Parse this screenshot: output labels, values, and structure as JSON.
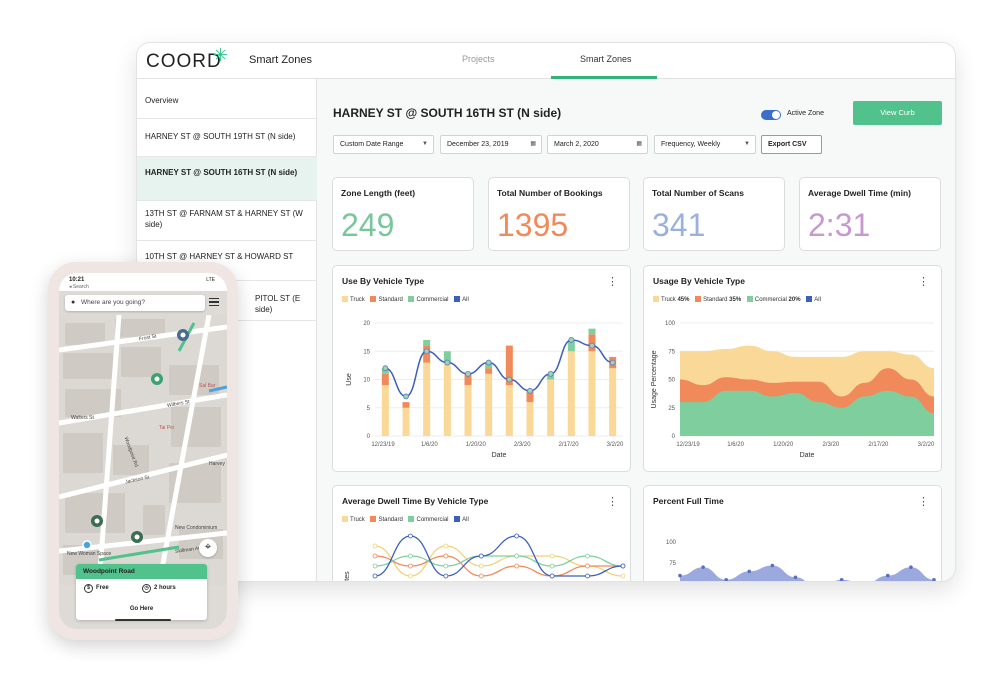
{
  "app": {
    "logo": "COORD",
    "title": "Smart Zones",
    "tabs": [
      {
        "label": "Projects"
      },
      {
        "label": "Smart Zones"
      }
    ],
    "accent": "#33b27e"
  },
  "sidebar": {
    "overview": "Overview",
    "items": [
      {
        "label": "HARNEY ST @ SOUTH 19TH ST (N side)"
      },
      {
        "label": "HARNEY ST @ SOUTH 16TH ST (N side)"
      },
      {
        "label": "13TH ST @ FARNAM ST & HARNEY ST (W side)"
      },
      {
        "label": "10TH ST @ HARNEY ST & HOWARD ST"
      },
      {
        "label": "PITOL ST (E side)"
      }
    ]
  },
  "main": {
    "zone_title": "HARNEY ST @ SOUTH 16TH ST (N side)",
    "active_zone_label": "Active Zone",
    "view_curb": "View Curb",
    "date_range": "Custom Date Range",
    "start_date": "December 23, 2019",
    "end_date": "March 2, 2020",
    "frequency": "Frequency,  Weekly",
    "export": "Export CSV"
  },
  "stats": [
    {
      "label": "Zone Length (feet)",
      "value": "249",
      "color": "#78c79a"
    },
    {
      "label": "Total Number of Bookings",
      "value": "1395",
      "color": "#f08a5a"
    },
    {
      "label": "Total Number of Scans",
      "value": "341",
      "color": "#9bb1dd"
    },
    {
      "label": "Average Dwell Time (min)",
      "value": "2:31",
      "color": "#c69ad0"
    }
  ],
  "panels": {
    "use_title": "Use By Vehicle Type",
    "usage_title": "Usage By Vehicle Type",
    "dwell_title": "Average Dwell Time By Vehicle Type",
    "full_title": "Percent Full Time",
    "legend": {
      "truck": "Truck",
      "standard": "Standard",
      "commercial": "Commercial",
      "all": "All"
    },
    "usage_legend": {
      "truck_pct": "45%",
      "standard_pct": "35%",
      "commercial_pct": "20%"
    },
    "xlabel": "Date",
    "use_ylabel": "Use",
    "usage_ylabel": "Usage Percentage",
    "dwell_ylabel": "utes"
  },
  "chart_data": [
    {
      "type": "bar",
      "title": "Use By Vehicle Type",
      "xlabel": "Date",
      "ylabel": "Use",
      "ylim": [
        0,
        20
      ],
      "yticks": [
        0,
        5,
        10,
        15,
        20
      ],
      "xtick_labels": [
        "12/23/19",
        "1/6/20",
        "1/20/20",
        "2/3/20",
        "2/17/20",
        "3/2/20"
      ],
      "series": [
        {
          "name": "Truck",
          "color": "#f9d898",
          "values": [
            9,
            5,
            13,
            13,
            9,
            11,
            9,
            6,
            10,
            15,
            15,
            12
          ]
        },
        {
          "name": "Standard",
          "color": "#f08a5a",
          "values": [
            2,
            1,
            3,
            0,
            2,
            1,
            7,
            2,
            0,
            0,
            3,
            2
          ]
        },
        {
          "name": "Commercial",
          "color": "#7fcf9e",
          "values": [
            1,
            0,
            1,
            2,
            0,
            1,
            0,
            0,
            1,
            2,
            1,
            0
          ]
        },
        {
          "name": "All",
          "color": "#3a5fbd",
          "type": "line",
          "values": [
            12,
            7,
            15,
            13,
            11,
            13,
            10,
            8,
            11,
            17,
            16,
            13
          ]
        }
      ]
    },
    {
      "type": "area",
      "title": "Usage By Vehicle Type",
      "xlabel": "Date",
      "ylabel": "Usage Percentage",
      "ylim": [
        0,
        100
      ],
      "yticks": [
        0,
        25,
        50,
        75,
        100
      ],
      "xtick_labels": [
        "12/23/19",
        "1/6/20",
        "1/20/20",
        "2/3/20",
        "2/17/20",
        "3/2/20"
      ],
      "series": [
        {
          "name": "Commercial",
          "color": "#7fcf9e",
          "values": [
            30,
            30,
            40,
            40,
            35,
            38,
            30,
            25,
            35,
            40,
            35,
            20
          ]
        },
        {
          "name": "Standard",
          "color": "#f08a5a",
          "values": [
            20,
            15,
            12,
            10,
            12,
            10,
            18,
            10,
            12,
            20,
            15,
            15
          ]
        },
        {
          "name": "Truck",
          "color": "#f9d898",
          "values": [
            25,
            30,
            25,
            30,
            28,
            22,
            22,
            35,
            28,
            15,
            22,
            25
          ]
        }
      ]
    },
    {
      "type": "line",
      "title": "Average Dwell Time By Vehicle Type",
      "series": [
        {
          "name": "Truck",
          "color": "#f0d27a",
          "values": [
            4,
            1,
            4,
            2,
            3,
            3,
            2,
            1
          ]
        },
        {
          "name": "Standard",
          "color": "#f08a5a",
          "values": [
            3,
            2,
            3,
            1,
            2,
            1,
            2,
            2
          ]
        },
        {
          "name": "Commercial",
          "color": "#7fcf9e",
          "values": [
            2,
            3,
            2,
            3,
            3,
            2,
            3,
            2
          ]
        },
        {
          "name": "All",
          "color": "#3a5fbd",
          "values": [
            1,
            5,
            1,
            3,
            5,
            1,
            1,
            2
          ]
        }
      ]
    },
    {
      "type": "area",
      "title": "Percent Full Time",
      "ylim": [
        0,
        100
      ],
      "yticks": [
        75,
        100
      ],
      "series": [
        {
          "name": "All",
          "color": "#8a9ad8",
          "values": [
            60,
            70,
            55,
            65,
            72,
            58,
            45,
            55,
            50,
            60,
            70,
            55
          ]
        }
      ]
    }
  ],
  "phone": {
    "time": "10:21",
    "sub": "◂ Search",
    "signal": "LTE",
    "search_placeholder": "Where are you going?",
    "streets": [
      "Frost St",
      "Walters St",
      "Wilbers St",
      "Jackson St",
      "Woodpoint Rd",
      "Skillman Ave",
      "Tai Pei",
      "Sal Bar",
      "Harvey",
      "New Condominium",
      "New Woman Space"
    ],
    "card_title": "Woodpoint Road",
    "card_price": "Free",
    "card_time": "2 hours",
    "card_action": "Go Here"
  }
}
